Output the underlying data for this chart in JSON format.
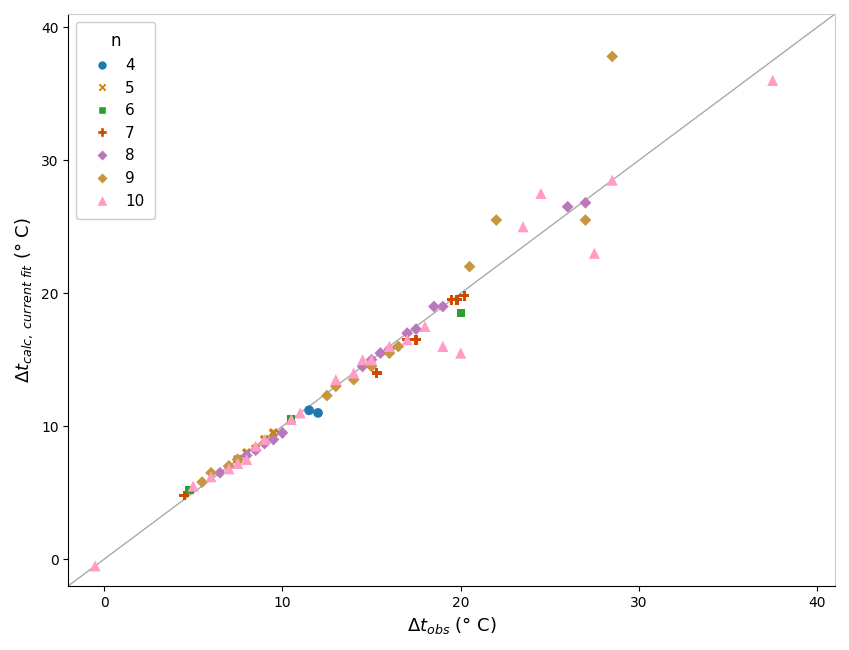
{
  "xlabel": "$\\Delta t_{obs}$ (° C)",
  "ylabel": "$\\Delta t_{calc,\\ \\mathit{current\\ fit}}$ (° C)",
  "xlim": [
    -2,
    41
  ],
  "ylim": [
    -2,
    41
  ],
  "xticks": [
    0,
    10,
    20,
    30,
    40
  ],
  "yticks": [
    0,
    10,
    20,
    30,
    40
  ],
  "diagonal_line": {
    "x": [
      -2,
      41
    ],
    "y": [
      -2,
      41
    ],
    "color": "#aaaaaa",
    "lw": 1.0
  },
  "series": [
    {
      "n": 4,
      "color": "#1f77b4",
      "marker": "o",
      "markersize": 7,
      "x": [
        11.5,
        12.0
      ],
      "y": [
        11.2,
        11.0
      ]
    },
    {
      "n": 5,
      "color": "#c8840a",
      "marker": "X",
      "markersize": 7,
      "x": [
        7.5,
        8.0,
        8.5,
        9.0,
        9.5,
        10.5
      ],
      "y": [
        7.5,
        8.0,
        8.3,
        9.0,
        9.5,
        10.5
      ]
    },
    {
      "n": 6,
      "color": "#2ca02c",
      "marker": "s",
      "markersize": 6,
      "x": [
        4.8,
        10.5,
        20.0
      ],
      "y": [
        5.2,
        10.5,
        18.5
      ]
    },
    {
      "n": 7,
      "color": "#cc4b00",
      "marker": "P",
      "markersize": 7,
      "x": [
        4.5,
        9.5,
        10.0,
        15.3,
        16.0,
        16.5,
        17.0,
        17.5,
        19.5,
        19.8,
        20.2
      ],
      "y": [
        4.8,
        9.0,
        9.5,
        14.0,
        15.5,
        16.0,
        16.5,
        16.5,
        19.5,
        19.5,
        19.8
      ]
    },
    {
      "n": 8,
      "color": "#bb77bb",
      "marker": "D",
      "markersize": 6,
      "x": [
        6.5,
        7.0,
        7.5,
        8.0,
        8.5,
        9.0,
        9.5,
        10.0,
        14.5,
        15.0,
        15.5,
        16.0,
        17.0,
        17.5,
        18.5,
        19.0,
        26.0,
        27.0
      ],
      "y": [
        6.5,
        7.0,
        7.5,
        7.8,
        8.2,
        8.7,
        9.0,
        9.5,
        14.5,
        15.0,
        15.5,
        15.8,
        17.0,
        17.3,
        19.0,
        19.0,
        26.5,
        26.8
      ]
    },
    {
      "n": 9,
      "color": "#c8963e",
      "marker": "D",
      "markersize": 6,
      "x": [
        5.5,
        6.0,
        7.0,
        7.5,
        12.5,
        13.0,
        14.0,
        15.0,
        16.0,
        16.5,
        20.5,
        22.0,
        27.0,
        28.5
      ],
      "y": [
        5.8,
        6.5,
        7.0,
        7.5,
        12.3,
        13.0,
        13.5,
        14.5,
        15.5,
        16.0,
        22.0,
        25.5,
        25.5,
        37.8
      ]
    },
    {
      "n": 10,
      "color": "#ff9dc8",
      "marker": "^",
      "markersize": 8,
      "x": [
        -0.5,
        5.0,
        6.0,
        7.0,
        7.5,
        8.0,
        8.5,
        9.0,
        10.5,
        11.0,
        13.0,
        14.0,
        14.5,
        15.0,
        16.0,
        17.0,
        18.0,
        19.0,
        20.0,
        23.5,
        24.5,
        27.5,
        28.5,
        37.5
      ],
      "y": [
        -0.5,
        5.5,
        6.2,
        6.8,
        7.2,
        7.5,
        8.5,
        9.0,
        10.5,
        11.0,
        13.5,
        14.0,
        15.0,
        15.0,
        16.0,
        16.5,
        17.5,
        16.0,
        15.5,
        25.0,
        27.5,
        23.0,
        28.5,
        36.0
      ]
    }
  ]
}
